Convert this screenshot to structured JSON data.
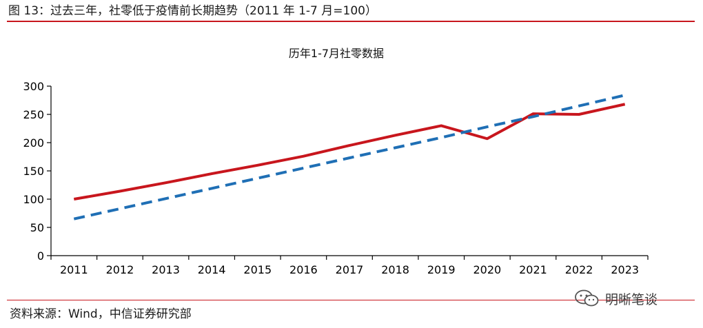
{
  "figure": {
    "title": "图 13：过去三年，社零低于疫情前长期趋势（2011 年 1-7 月=100）",
    "source": "资料来源：Wind，中信证券研究部",
    "watermark_text": "明晰笔谈",
    "watermark_icon": "wechat-icon"
  },
  "chart_data": {
    "type": "line",
    "title": "历年1-7月社零数据",
    "xlabel": "",
    "ylabel": "",
    "ylim": [
      0,
      300
    ],
    "yticks": [
      0,
      50,
      100,
      150,
      200,
      250,
      300
    ],
    "categories": [
      "2011",
      "2012",
      "2013",
      "2014",
      "2015",
      "2016",
      "2017",
      "2018",
      "2019",
      "2020",
      "2021",
      "2022",
      "2023"
    ],
    "series": [
      {
        "values": [
          100,
          114,
          129,
          145,
          160,
          176,
          195,
          213,
          230,
          207,
          251,
          250,
          268
        ],
        "color": "#c8161d",
        "style": "solid"
      },
      {
        "values": [
          65,
          83,
          101,
          119,
          137,
          155,
          173,
          191,
          209,
          228,
          246,
          265,
          284
        ],
        "color": "#1f6fb5",
        "style": "dashed"
      }
    ],
    "grid": false,
    "legend": "none"
  }
}
